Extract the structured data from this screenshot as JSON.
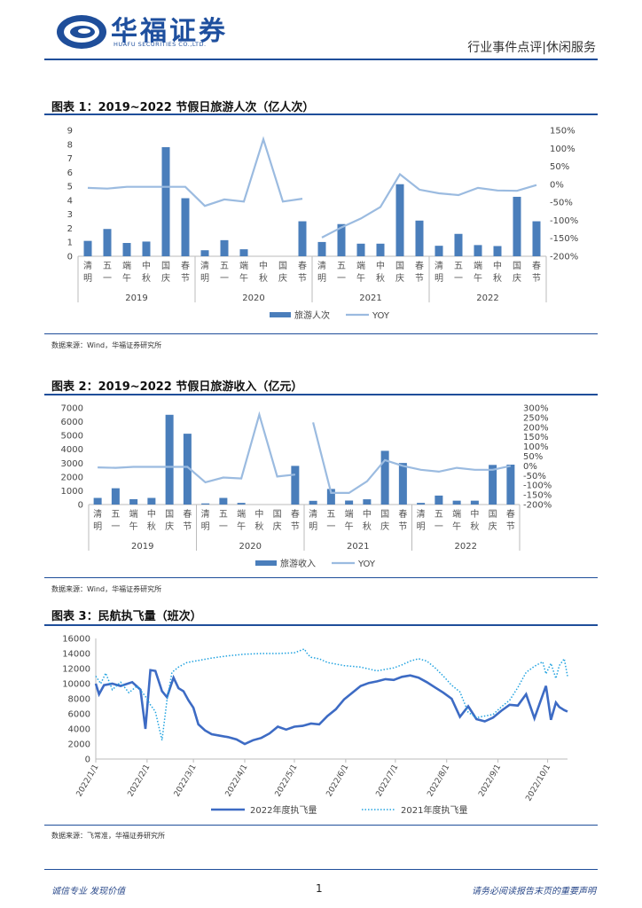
{
  "header": {
    "logo_cn": "华福证券",
    "logo_en": "HUAFU SECURITIES CO.,LTD.",
    "right_text": "行业事件点评|休闲服务"
  },
  "figures": [
    {
      "title": "图表 1：2019~2022 节假日旅游人次（亿人次）",
      "source": "数据来源：Wind，华福证券研究所"
    },
    {
      "title": "图表 2：2019~2022 节假日旅游收入（亿元）",
      "source": "数据来源：Wind，华福证券研究所"
    },
    {
      "title": "图表 3：民航执飞量（班次）",
      "source": "数据来源：飞常准，华福证券研究所"
    }
  ],
  "footer": {
    "left": "诚信专业 发现价值",
    "page": "1",
    "right": "请务必阅读报告末页的重要声明"
  },
  "colors": {
    "brand": "#1f4e9a",
    "bar": "#4a7ebb",
    "yoy_line": "#9bbbe0",
    "line2022": "#3d6bc4",
    "line2021": "#22a3e0"
  },
  "chart_data": [
    {
      "type": "bar",
      "title": "",
      "categories": [
        "清明",
        "五一",
        "端午",
        "中秋",
        "国庆",
        "春节",
        "清明",
        "五一",
        "端午",
        "中秋",
        "国庆",
        "春节",
        "清明",
        "五一",
        "端午",
        "中秋",
        "国庆",
        "春节",
        "清明",
        "五一",
        "端午",
        "中秋",
        "国庆",
        "春节"
      ],
      "groups": [
        {
          "label": "2019",
          "start": 0,
          "end": 5
        },
        {
          "label": "2020",
          "start": 6,
          "end": 11
        },
        {
          "label": "2021",
          "start": 12,
          "end": 17
        },
        {
          "label": "2022",
          "start": 18,
          "end": 23
        }
      ],
      "series": [
        {
          "name": "旅游人次",
          "axis": "left",
          "kind": "bar",
          "values": [
            1.1,
            1.95,
            0.95,
            1.05,
            7.8,
            4.15,
            0.43,
            1.15,
            0.5,
            null,
            null,
            2.5,
            1.02,
            2.3,
            0.9,
            0.9,
            5.15,
            2.55,
            0.75,
            1.6,
            0.8,
            0.73,
            4.25,
            2.5
          ]
        },
        {
          "name": "YOY",
          "axis": "right",
          "kind": "line",
          "segments": [
            [
              0,
              11
            ],
            [
              12,
              23
            ]
          ],
          "values": [
            -10,
            -12,
            -7,
            -7,
            -7,
            -7,
            -60,
            -42,
            -48,
            125,
            -48,
            -40,
            -148,
            -120,
            -95,
            -63,
            28,
            -15,
            -25,
            -30,
            -10,
            -17,
            -18,
            -2
          ]
        }
      ],
      "ylim": [
        0,
        9
      ],
      "yticks": [
        0,
        1,
        2,
        3,
        4,
        5,
        6,
        7,
        8,
        9
      ],
      "y2lim": [
        -200,
        150
      ],
      "y2ticks": [
        "-200%",
        "-150%",
        "-100%",
        "-50%",
        "0%",
        "50%",
        "100%",
        "150%"
      ],
      "legend": "bottom"
    },
    {
      "type": "bar",
      "title": "",
      "categories": [
        "清明",
        "五一",
        "端午",
        "中秋",
        "国庆",
        "春节",
        "清明",
        "五一",
        "端午",
        "中秋",
        "国庆",
        "春节",
        "清明",
        "五一",
        "端午",
        "中秋",
        "国庆",
        "春节",
        "清明",
        "五一",
        "端午",
        "中秋",
        "国庆",
        "春节"
      ],
      "groups": [
        {
          "label": "2019",
          "start": 0,
          "end": 5
        },
        {
          "label": "2020",
          "start": 6,
          "end": 11
        },
        {
          "label": "2021",
          "start": 12,
          "end": 17
        },
        {
          "label": "2022",
          "start": 18,
          "end": 23
        }
      ],
      "series": [
        {
          "name": "旅游收入",
          "axis": "left",
          "kind": "bar",
          "values": [
            480,
            1180,
            390,
            480,
            6500,
            5130,
            80,
            480,
            120,
            null,
            null,
            2800,
            270,
            1130,
            290,
            380,
            3890,
            3010,
            120,
            650,
            280,
            280,
            2870,
            2890
          ]
        },
        {
          "name": "YOY",
          "axis": "right",
          "kind": "line",
          "segments": [
            [
              0,
              11
            ],
            [
              12,
              23
            ]
          ],
          "values": [
            -8,
            -10,
            -5,
            -5,
            -5,
            -5,
            -85,
            -60,
            -65,
            265,
            -55,
            -45,
            225,
            -140,
            -140,
            -80,
            30,
            0,
            -20,
            -30,
            -10,
            -20,
            -20,
            0
          ]
        }
      ],
      "ylim": [
        0,
        7000
      ],
      "yticks": [
        0,
        1000,
        2000,
        3000,
        4000,
        5000,
        6000,
        7000
      ],
      "y2lim": [
        -200,
        300
      ],
      "y2ticks": [
        "-200%",
        "-150%",
        "-100%",
        "-50%",
        "0%",
        "50%",
        "100%",
        "150%",
        "200%",
        "250%",
        "300%"
      ],
      "legend": "bottom"
    },
    {
      "type": "line",
      "title": "",
      "x_labels": [
        "2022/1/1",
        "2022/2/1",
        "2022/3/1",
        "2022/4/1",
        "2022/5/1",
        "2022/6/1",
        "2022/7/1",
        "2022/8/1",
        "2022/9/1",
        "2022/10/1"
      ],
      "x_range": [
        "2022/1/1",
        "2022/10/12"
      ],
      "ylim": [
        0,
        16000
      ],
      "yticks": [
        0,
        2000,
        4000,
        6000,
        8000,
        10000,
        12000,
        14000,
        16000
      ],
      "series": [
        {
          "name": "2022年度执飞量",
          "style": "solid",
          "x_days": [
            0,
            2,
            5,
            10,
            15,
            22,
            27,
            30,
            33,
            36,
            40,
            43,
            47,
            50,
            53,
            56,
            59,
            62,
            66,
            70,
            75,
            80,
            85,
            90,
            95,
            100,
            105,
            110,
            115,
            120,
            125,
            130,
            135,
            140,
            145,
            150,
            155,
            160,
            165,
            170,
            175,
            180,
            185,
            190,
            195,
            200,
            205,
            210,
            215,
            220,
            225,
            230,
            235,
            240,
            245,
            250,
            255,
            260,
            265,
            270,
            272,
            275,
            278,
            280,
            283,
            285
          ],
          "values": [
            10000,
            8600,
            9800,
            10000,
            9700,
            10200,
            9200,
            4000,
            11800,
            11700,
            9000,
            8200,
            10800,
            9400,
            9000,
            7800,
            6800,
            4600,
            3800,
            3300,
            3100,
            2900,
            2600,
            2000,
            2500,
            2800,
            3400,
            4300,
            3900,
            4300,
            4400,
            4700,
            4600,
            5700,
            6600,
            7900,
            8800,
            9700,
            10100,
            10300,
            10600,
            10500,
            10900,
            11100,
            10800,
            10200,
            9500,
            8800,
            8000,
            5600,
            7000,
            5300,
            5000,
            5500,
            6400,
            7200,
            7100,
            8600,
            5400,
            8500,
            9700,
            5200,
            7500,
            6900,
            6500,
            6300
          ]
        },
        {
          "name": "2021年度执飞量",
          "style": "dotted",
          "x_days": [
            0,
            3,
            6,
            10,
            15,
            20,
            25,
            30,
            33,
            36,
            40,
            43,
            46,
            50,
            55,
            60,
            70,
            80,
            90,
            100,
            110,
            120,
            126,
            128,
            130,
            135,
            140,
            150,
            160,
            170,
            180,
            185,
            190,
            195,
            200,
            205,
            210,
            215,
            220,
            225,
            230,
            235,
            240,
            245,
            250,
            255,
            260,
            265,
            270,
            272,
            275,
            278,
            280,
            283,
            285
          ],
          "values": [
            11000,
            10000,
            11400,
            9200,
            10200,
            8800,
            9700,
            8300,
            7200,
            6300,
            2500,
            7800,
            11500,
            12200,
            12800,
            13000,
            13400,
            13700,
            13900,
            14000,
            14000,
            14100,
            14600,
            13900,
            13500,
            13300,
            12800,
            12400,
            12200,
            11700,
            12100,
            12500,
            13000,
            13300,
            13000,
            12100,
            11000,
            9800,
            8900,
            6200,
            5500,
            5700,
            5900,
            6900,
            7800,
            9500,
            11500,
            12300,
            12900,
            11300,
            12700,
            10700,
            12400,
            13300,
            11000
          ]
        }
      ],
      "legend": "bottom"
    }
  ]
}
